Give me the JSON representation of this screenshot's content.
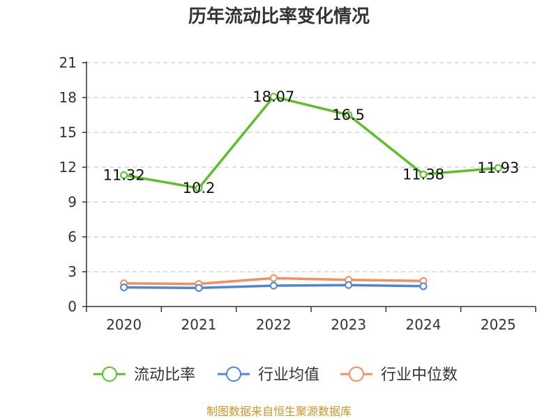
{
  "chart_data": {
    "type": "line",
    "title": "历年流动比率变化情况",
    "categories": [
      "2020",
      "2021",
      "2022",
      "2023",
      "2024",
      "2025"
    ],
    "ylim": [
      0,
      21
    ],
    "yticks": [
      0,
      3,
      6,
      9,
      12,
      15,
      18,
      21
    ],
    "grid": true,
    "legend_position": "bottom",
    "series": [
      {
        "name": "流动比率",
        "color": "#5cbf2a",
        "values": [
          11.32,
          10.2,
          18.07,
          16.5,
          11.38,
          11.93
        ],
        "data_labels": [
          "11.32",
          "10.2",
          "18.07",
          "16.5",
          "11.38",
          "11.93"
        ]
      },
      {
        "name": "行业均值",
        "color": "#4f85d8",
        "values": [
          1.65,
          1.6,
          1.8,
          1.85,
          1.75,
          null
        ]
      },
      {
        "name": "行业中位数",
        "color": "#f28e5f",
        "values": [
          2.0,
          1.95,
          2.45,
          2.3,
          2.2,
          null
        ]
      }
    ],
    "source": "制图数据来自恒生聚源数据库"
  }
}
